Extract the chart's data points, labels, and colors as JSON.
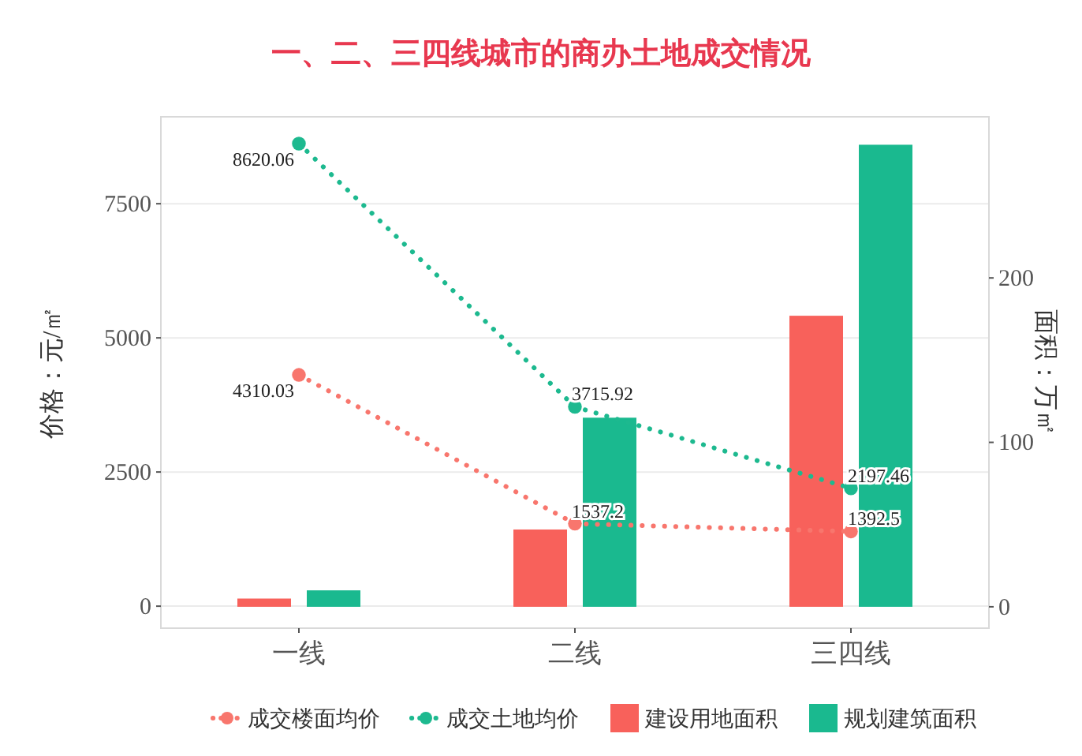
{
  "chart_data": {
    "type": "bar",
    "title": "一、二、三四线城市的商办土地成交情况",
    "ylabel": "价格：元/㎡",
    "y2label": "面积：万㎡",
    "categories": [
      "一线",
      "二线",
      "三四线"
    ],
    "series": [
      {
        "name": "成交楼面均价",
        "type": "line",
        "color": "#f8766d",
        "values": [
          4310.03,
          1537.2,
          1392.5
        ],
        "value_labels": [
          "4310.03",
          "1537.2",
          "1392.5"
        ]
      },
      {
        "name": "成交土地均价",
        "type": "line",
        "color": "#1db98f",
        "values": [
          8620.06,
          3715.92,
          2197.46
        ],
        "value_labels": [
          "8620.06",
          "3715.92",
          "2197.46"
        ]
      },
      {
        "name": "建设用地面积",
        "axis": "y2",
        "color": "#f8615b",
        "values": [
          5,
          47,
          177
        ]
      },
      {
        "name": "规划建筑面积",
        "axis": "y2",
        "color": "#1ab98f",
        "values": [
          10,
          115,
          281
        ]
      }
    ],
    "ylim": [
      -410,
      9120
    ],
    "yticks": [
      0,
      2500,
      5000,
      7500
    ],
    "y2lim": [
      -13,
      298
    ],
    "y2ticks": [
      0,
      100,
      200
    ],
    "grid": "y",
    "legend": "bottom",
    "marker": "circle",
    "line_style": "dotted"
  }
}
